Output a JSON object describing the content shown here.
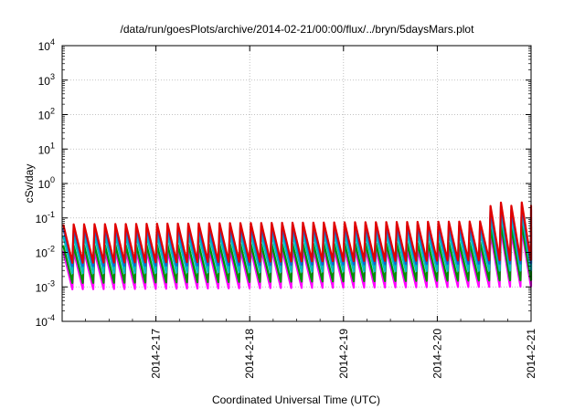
{
  "chart_data": {
    "type": "line",
    "title": "/data/run/goesPlots/archive/2014-02-21/00:00/flux/../bryn/5daysMars.plot",
    "xlabel": "Coordinated Universal Time (UTC)",
    "ylabel": "cSv/day",
    "y_scale": "log",
    "ylim_exponents": [
      -4,
      4
    ],
    "y_tick_exponents": [
      -4,
      -3,
      -2,
      -1,
      0,
      1,
      2,
      3,
      4
    ],
    "y_tick_base": "10",
    "xlim_days": [
      2014.0216,
      2014.0221
    ],
    "x_range": [
      "2014-02-16 00:00",
      "2014-02-21 00:00"
    ],
    "x_ticks": [
      "2014-2-17",
      "2014-2-18",
      "2014-2-19",
      "2014-2-20",
      "2014-2-21"
    ],
    "grid": true,
    "legend": "none",
    "sawtooth_cycles_per_day": 9,
    "series": [
      {
        "color": "#ff00ff",
        "peak": 0.011,
        "trough": 0.00085
      },
      {
        "color": "#009000",
        "peak": 0.016,
        "trough": 0.0013
      },
      {
        "color": "#00c0c0",
        "peak": 0.03,
        "trough": 0.0025
      },
      {
        "color": "#1560d8",
        "peak": 0.05,
        "trough": 0.004
      },
      {
        "color": "#e00000",
        "peak": 0.065,
        "trough": 0.005
      }
    ],
    "event": {
      "start": "2014-02-20 11:00",
      "peak_factor": 3.5,
      "note": "elevated peaks late on 2014-02-20"
    }
  }
}
